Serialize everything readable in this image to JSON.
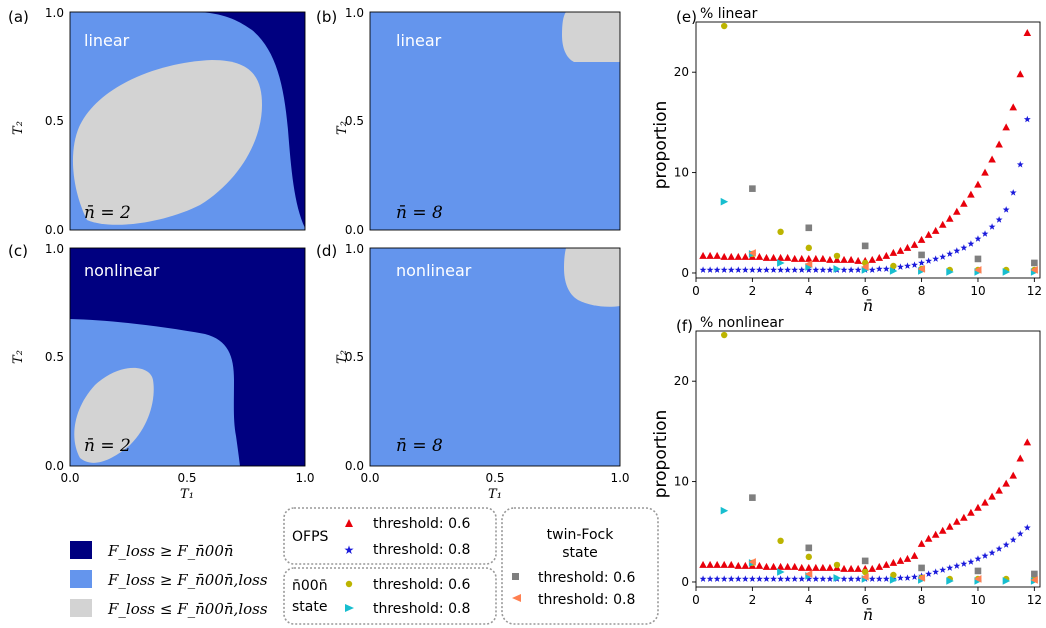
{
  "colors": {
    "dark_blue": "#000080",
    "light_blue": "#6495ED",
    "gray": "#D3D3D3",
    "ofps_06": "#E8000B",
    "ofps_08": "#1A1ADB",
    "n00n_06": "#BCB400",
    "n00n_08": "#17BECF",
    "tf_06": "#7F7F7F",
    "tf_08": "#FF7F50"
  },
  "map_panels": [
    {
      "id": "a",
      "tag": "(a)",
      "label": "linear",
      "nbar": "n̄ = 2",
      "nbar_raw": "\\bar{n}=2"
    },
    {
      "id": "b",
      "tag": "(b)",
      "label": "linear",
      "nbar": "n̄ = 8",
      "nbar_raw": "\\bar{n}=8"
    },
    {
      "id": "c",
      "tag": "(c)",
      "label": "nonlinear",
      "nbar": "n̄ = 2",
      "nbar_raw": "\\bar{n}=2"
    },
    {
      "id": "d",
      "tag": "(d)",
      "label": "nonlinear",
      "nbar": "n̄ = 8",
      "nbar_raw": "\\bar{n}=8"
    }
  ],
  "map_axes": {
    "ylabel": "T₂",
    "xlabel": "T₁",
    "yticks": [
      "0.0",
      "0.5",
      "1.0"
    ],
    "xticks": [
      "0.0",
      "0.5",
      "1.0"
    ]
  },
  "legend_regions": [
    {
      "label": "F_loss ≥ F_n̄00n̄",
      "color_key": "dark_blue"
    },
    {
      "label": "F_loss ≥ F_n̄00n̄,loss",
      "color_key": "light_blue"
    },
    {
      "label": "F_loss ≤ F_n̄00n̄,loss",
      "color_key": "gray"
    }
  ],
  "legend_boxes": {
    "ofps": {
      "title": "OFPS",
      "entries": [
        "threshold: 0.6",
        "threshold: 0.8"
      ]
    },
    "n00n": {
      "title1": "n̄00n̄",
      "title2": "state",
      "entries": [
        "threshold: 0.6",
        "threshold: 0.8"
      ]
    },
    "twinfock": {
      "title1": "twin-Fock",
      "title2": "state",
      "entries": [
        "threshold: 0.6",
        "threshold: 0.8"
      ]
    }
  },
  "chart_data": [
    {
      "type": "scatter",
      "tag": "(e)",
      "title": "% linear",
      "xlabel": "n̄",
      "ylabel": "proportion",
      "xlim": [
        0,
        12.2
      ],
      "ylim": [
        -0.5,
        25
      ],
      "xticks": [
        0,
        2,
        4,
        6,
        8,
        10,
        12
      ],
      "yticks": [
        0,
        10,
        20
      ],
      "series": [
        {
          "name": "OFPS threshold: 0.6",
          "marker": "triangle-up",
          "color_key": "ofps_06",
          "x": [
            0.25,
            0.5,
            0.75,
            1,
            1.25,
            1.5,
            1.75,
            2,
            2.25,
            2.5,
            2.75,
            3,
            3.25,
            3.5,
            3.75,
            4,
            4.25,
            4.5,
            4.75,
            5,
            5.25,
            5.5,
            5.75,
            6,
            6.25,
            6.5,
            6.75,
            7,
            7.25,
            7.5,
            7.75,
            8,
            8.25,
            8.5,
            8.75,
            9,
            9.25,
            9.5,
            9.75,
            10,
            10.25,
            10.5,
            10.75,
            11,
            11.25,
            11.5,
            11.75
          ],
          "y": [
            1.7,
            1.7,
            1.7,
            1.6,
            1.6,
            1.6,
            1.6,
            1.6,
            1.6,
            1.5,
            1.5,
            1.5,
            1.5,
            1.4,
            1.4,
            1.4,
            1.4,
            1.4,
            1.3,
            1.3,
            1.3,
            1.3,
            1.2,
            1.2,
            1.3,
            1.5,
            1.7,
            2.0,
            2.2,
            2.5,
            2.8,
            3.3,
            3.8,
            4.2,
            4.8,
            5.4,
            6.1,
            6.9,
            7.8,
            8.8,
            10.0,
            11.3,
            12.8,
            14.5,
            16.5,
            19.8,
            23.9
          ]
        },
        {
          "name": "OFPS threshold: 0.8",
          "marker": "star",
          "color_key": "ofps_08",
          "x": [
            0.25,
            0.5,
            0.75,
            1,
            1.25,
            1.5,
            1.75,
            2,
            2.25,
            2.5,
            2.75,
            3,
            3.25,
            3.5,
            3.75,
            4,
            4.25,
            4.5,
            4.75,
            5,
            5.25,
            5.5,
            5.75,
            6,
            6.25,
            6.5,
            6.75,
            7,
            7.25,
            7.5,
            7.75,
            8,
            8.25,
            8.5,
            8.75,
            9,
            9.25,
            9.5,
            9.75,
            10,
            10.25,
            10.5,
            10.75,
            11,
            11.25,
            11.5,
            11.75
          ],
          "y": [
            0.3,
            0.3,
            0.3,
            0.3,
            0.3,
            0.3,
            0.3,
            0.3,
            0.3,
            0.3,
            0.3,
            0.3,
            0.3,
            0.3,
            0.3,
            0.3,
            0.3,
            0.3,
            0.3,
            0.3,
            0.3,
            0.3,
            0.3,
            0.3,
            0.3,
            0.4,
            0.4,
            0.5,
            0.6,
            0.7,
            0.8,
            1.0,
            1.2,
            1.4,
            1.6,
            1.9,
            2.2,
            2.5,
            2.9,
            3.4,
            3.9,
            4.6,
            5.3,
            6.3,
            8.0,
            10.8,
            15.3
          ]
        },
        {
          "name": "n̄00n̄ state threshold: 0.6",
          "marker": "circle",
          "color_key": "n00n_06",
          "x": [
            1,
            2,
            3,
            4,
            5,
            6,
            7,
            8,
            9,
            10,
            11,
            12
          ],
          "y": [
            24.6,
            1.9,
            4.1,
            2.5,
            1.7,
            1.0,
            0.7,
            0.4,
            0.3,
            0.3,
            0.3,
            0.3
          ]
        },
        {
          "name": "n̄00n̄ state threshold: 0.8",
          "marker": "triangle-right",
          "color_key": "n00n_08",
          "x": [
            1,
            2,
            3,
            4,
            5,
            6,
            7,
            8,
            9,
            10,
            11,
            12
          ],
          "y": [
            7.1,
            1.9,
            1.0,
            0.6,
            0.4,
            0.3,
            0.2,
            0.2,
            0.1,
            0.1,
            0.1,
            0.1
          ]
        },
        {
          "name": "twin-Fock state threshold: 0.6",
          "marker": "square",
          "color_key": "tf_06",
          "x": [
            2,
            4,
            6,
            8,
            10,
            12
          ],
          "y": [
            8.4,
            4.5,
            2.7,
            1.8,
            1.4,
            1.0
          ]
        },
        {
          "name": "twin-Fock state threshold: 0.8",
          "marker": "triangle-left",
          "color_key": "tf_08",
          "x": [
            2,
            4,
            6,
            8,
            10,
            12
          ],
          "y": [
            2.0,
            0.9,
            0.6,
            0.4,
            0.3,
            0.3
          ]
        }
      ]
    },
    {
      "type": "scatter",
      "tag": "(f)",
      "title": "% nonlinear",
      "xlabel": "n̄",
      "ylabel": "proportion",
      "xlim": [
        0,
        12.2
      ],
      "ylim": [
        -0.5,
        25
      ],
      "xticks": [
        0,
        2,
        4,
        6,
        8,
        10,
        12
      ],
      "yticks": [
        0,
        10,
        20
      ],
      "series": [
        {
          "name": "OFPS threshold: 0.6",
          "marker": "triangle-up",
          "color_key": "ofps_06",
          "x": [
            0.25,
            0.5,
            0.75,
            1,
            1.25,
            1.5,
            1.75,
            2,
            2.25,
            2.5,
            2.75,
            3,
            3.25,
            3.5,
            3.75,
            4,
            4.25,
            4.5,
            4.75,
            5,
            5.25,
            5.5,
            5.75,
            6,
            6.25,
            6.5,
            6.75,
            7,
            7.25,
            7.5,
            7.75,
            8,
            8.25,
            8.5,
            8.75,
            9,
            9.25,
            9.5,
            9.75,
            10,
            10.25,
            10.5,
            10.75,
            11,
            11.25,
            11.5,
            11.75
          ],
          "y": [
            1.7,
            1.7,
            1.7,
            1.7,
            1.7,
            1.6,
            1.6,
            1.6,
            1.6,
            1.5,
            1.5,
            1.5,
            1.5,
            1.5,
            1.4,
            1.4,
            1.4,
            1.4,
            1.4,
            1.4,
            1.3,
            1.3,
            1.3,
            1.3,
            1.3,
            1.5,
            1.7,
            1.9,
            2.1,
            2.3,
            2.6,
            3.8,
            4.3,
            4.7,
            5.1,
            5.5,
            6.0,
            6.4,
            6.9,
            7.4,
            7.9,
            8.5,
            9.1,
            9.8,
            10.6,
            12.3,
            13.9
          ]
        },
        {
          "name": "OFPS threshold: 0.8",
          "marker": "star",
          "color_key": "ofps_08",
          "x": [
            0.25,
            0.5,
            0.75,
            1,
            1.25,
            1.5,
            1.75,
            2,
            2.25,
            2.5,
            2.75,
            3,
            3.25,
            3.5,
            3.75,
            4,
            4.25,
            4.5,
            4.75,
            5,
            5.25,
            5.5,
            5.75,
            6,
            6.25,
            6.5,
            6.75,
            7,
            7.25,
            7.5,
            7.75,
            8,
            8.25,
            8.5,
            8.75,
            9,
            9.25,
            9.5,
            9.75,
            10,
            10.25,
            10.5,
            10.75,
            11,
            11.25,
            11.5,
            11.75
          ],
          "y": [
            0.3,
            0.3,
            0.3,
            0.3,
            0.3,
            0.3,
            0.3,
            0.3,
            0.3,
            0.3,
            0.3,
            0.3,
            0.3,
            0.3,
            0.3,
            0.3,
            0.3,
            0.3,
            0.3,
            0.3,
            0.3,
            0.3,
            0.3,
            0.3,
            0.3,
            0.3,
            0.3,
            0.3,
            0.4,
            0.4,
            0.5,
            0.6,
            0.8,
            1.0,
            1.2,
            1.4,
            1.6,
            1.8,
            2.0,
            2.3,
            2.6,
            2.9,
            3.3,
            3.7,
            4.2,
            4.8,
            5.4
          ]
        },
        {
          "name": "n̄00n̄ state threshold: 0.6",
          "marker": "circle",
          "color_key": "n00n_06",
          "x": [
            1,
            2,
            3,
            4,
            5,
            6,
            7,
            8,
            9,
            10,
            11,
            12
          ],
          "y": [
            24.6,
            1.9,
            4.1,
            2.5,
            1.7,
            1.0,
            0.7,
            0.4,
            0.3,
            0.3,
            0.3,
            0.3
          ]
        },
        {
          "name": "n̄00n̄ state threshold: 0.8",
          "marker": "triangle-right",
          "color_key": "n00n_08",
          "x": [
            1,
            2,
            3,
            4,
            5,
            6,
            7,
            8,
            9,
            10,
            11,
            12
          ],
          "y": [
            7.1,
            1.9,
            1.0,
            0.6,
            0.4,
            0.3,
            0.2,
            0.2,
            0.1,
            0.1,
            0.1,
            0.1
          ]
        },
        {
          "name": "twin-Fock state threshold: 0.6",
          "marker": "square",
          "color_key": "tf_06",
          "x": [
            2,
            4,
            6,
            8,
            10,
            12
          ],
          "y": [
            8.4,
            3.4,
            2.1,
            1.4,
            1.1,
            0.8
          ]
        },
        {
          "name": "twin-Fock state threshold: 0.8",
          "marker": "triangle-left",
          "color_key": "tf_08",
          "x": [
            2,
            4,
            6,
            8,
            10,
            12
          ],
          "y": [
            2.0,
            0.8,
            0.5,
            0.4,
            0.3,
            0.2
          ]
        }
      ]
    }
  ]
}
